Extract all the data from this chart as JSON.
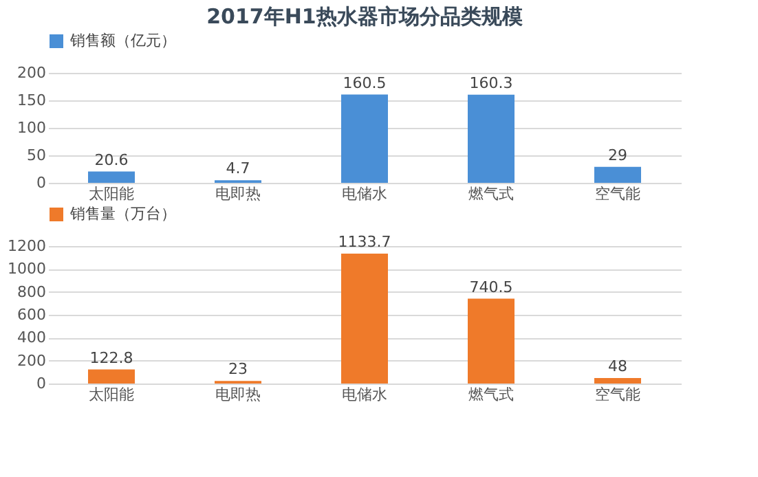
{
  "chart_data": [
    {
      "type": "bar",
      "title": "2017年H1热水器市场分品类规模",
      "categories": [
        "太阳能",
        "电即热",
        "电储水",
        "燃气式",
        "空气能"
      ],
      "series": [
        {
          "name": "销售额（亿元）",
          "color": "#4a8fd6",
          "values": [
            20.6,
            4.7,
            160.5,
            160.3,
            29
          ]
        }
      ],
      "ylim": [
        0,
        200
      ],
      "yticks": [
        0,
        50,
        100,
        150,
        200
      ],
      "grid": "y",
      "legend": "top",
      "data_labels": true
    },
    {
      "type": "bar",
      "categories": [
        "太阳能",
        "电即热",
        "电储水",
        "燃气式",
        "空气能"
      ],
      "series": [
        {
          "name": "销售量（万台）",
          "color": "#ef7a2a",
          "values": [
            122.8,
            23,
            1133.7,
            740.5,
            48
          ]
        }
      ],
      "ylim": [
        0,
        1200
      ],
      "yticks": [
        0,
        200,
        400,
        600,
        800,
        1000,
        1200
      ],
      "grid": "y",
      "legend": "top",
      "data_labels": true
    }
  ]
}
